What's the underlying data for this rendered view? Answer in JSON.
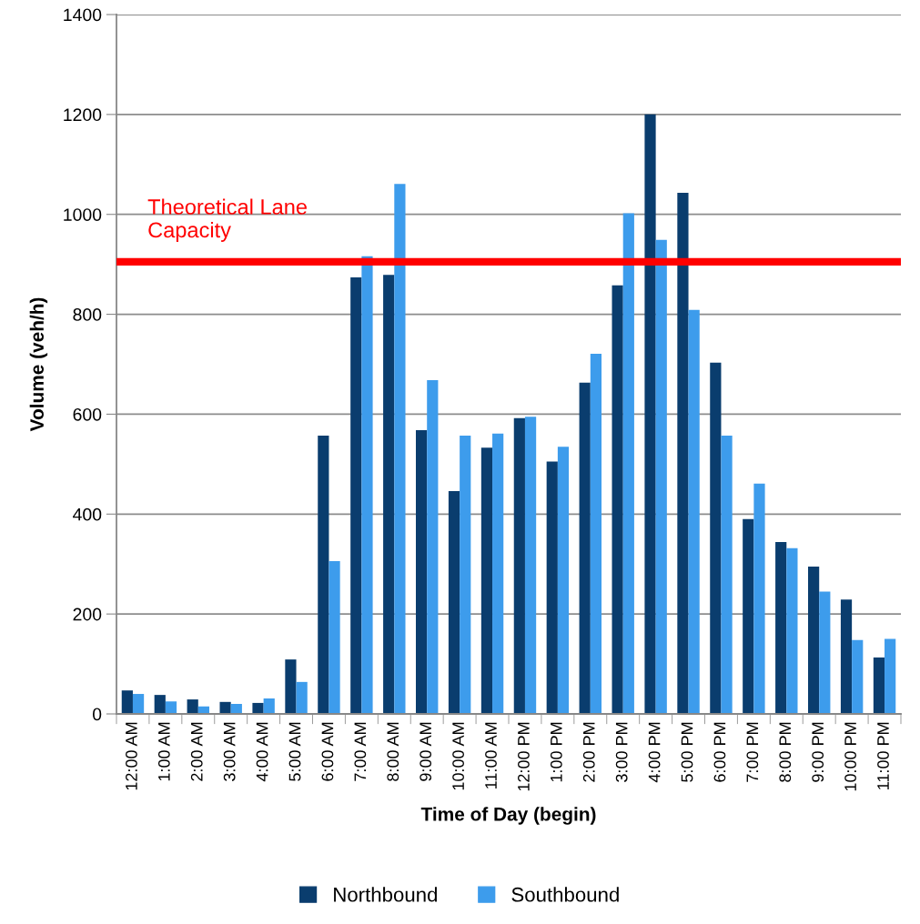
{
  "chart_data": {
    "type": "bar",
    "xlabel": "Time of Day (begin)",
    "ylabel": "Volume (veh/h)",
    "categories": [
      "12:00 AM",
      "1:00 AM",
      "2:00 AM",
      "3:00 AM",
      "4:00 AM",
      "5:00 AM",
      "6:00 AM",
      "7:00 AM",
      "8:00 AM",
      "9:00 AM",
      "10:00 AM",
      "11:00 AM",
      "12:00 PM",
      "1:00 PM",
      "2:00 PM",
      "3:00 PM",
      "4:00 PM",
      "5:00 PM",
      "6:00 PM",
      "7:00 PM",
      "8:00 PM",
      "9:00 PM",
      "10:00 PM",
      "11:00 PM"
    ],
    "series": [
      {
        "name": "Northbound",
        "color": "#0a3d6e",
        "values": [
          47,
          38,
          29,
          24,
          22,
          109,
          557,
          874,
          879,
          568,
          446,
          533,
          592,
          505,
          663,
          858,
          1200,
          1043,
          703,
          390,
          344,
          295,
          229,
          113
        ]
      },
      {
        "name": "Southbound",
        "color": "#3d9cec",
        "values": [
          40,
          25,
          15,
          20,
          31,
          64,
          306,
          916,
          1061,
          668,
          557,
          561,
          595,
          535,
          721,
          1002,
          949,
          809,
          557,
          461,
          332,
          245,
          148,
          150
        ]
      }
    ],
    "ylim": [
      0,
      1400
    ],
    "yticks": [
      0,
      200,
      400,
      600,
      800,
      1000,
      1200,
      1400
    ],
    "grid": "y",
    "legend": "bottom",
    "ref_lines": [
      {
        "axis": "y",
        "value": 905,
        "label": "Theoretical Lane\nCapacity",
        "color": "#ff0000"
      }
    ]
  }
}
